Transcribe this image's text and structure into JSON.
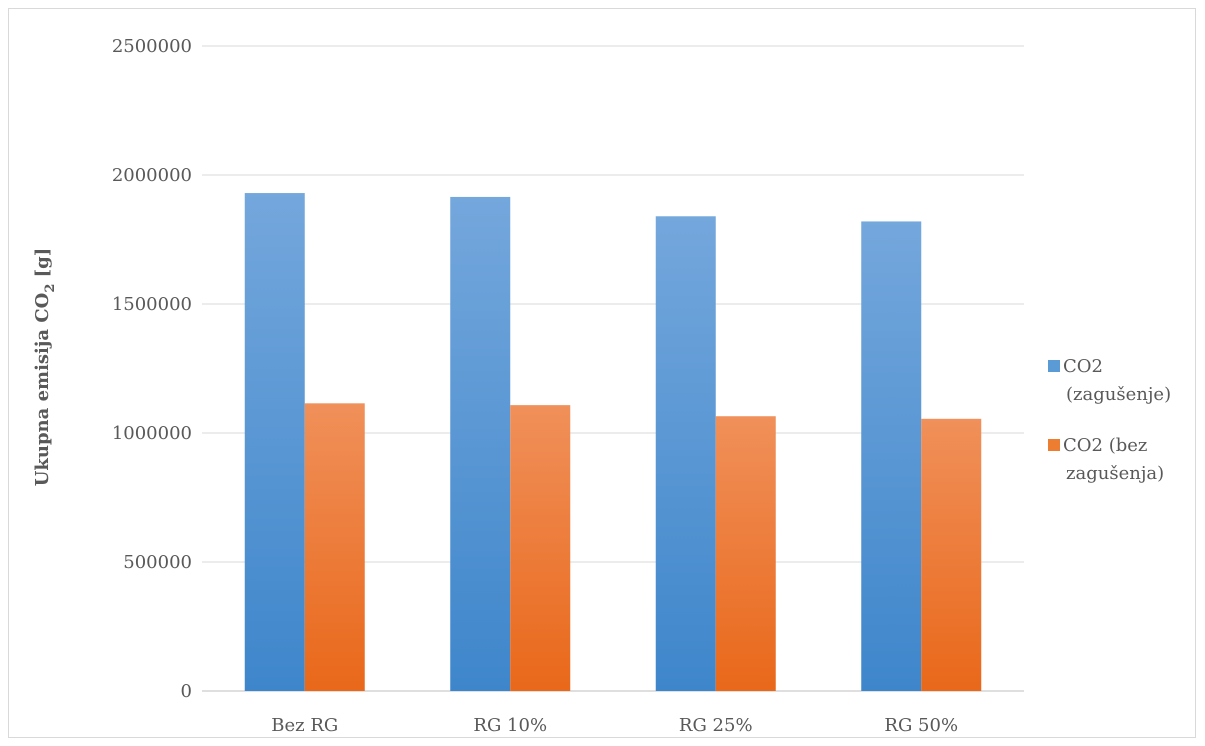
{
  "chart_data": {
    "type": "bar",
    "categories": [
      "Bez RG",
      "RG 10%",
      "RG 25%",
      "RG 50%"
    ],
    "series": [
      {
        "name": "CO2 (zagušenje)",
        "values": [
          1930000,
          1915000,
          1840000,
          1820000
        ],
        "color": "#5b9bd5"
      },
      {
        "name": "CO2 (bez zagušenja)",
        "values": [
          1115000,
          1108000,
          1065000,
          1055000
        ],
        "color": "#ed7d31"
      }
    ],
    "ylabel_main": "Ukupna emisija CO",
    "ylabel_sub": "2",
    "ylabel_tail": " [g]",
    "ylim": [
      0,
      2500000
    ],
    "yticks": [
      0,
      500000,
      1000000,
      1500000,
      2000000,
      2500000
    ],
    "ytick_labels": [
      "0",
      "500000",
      "1000000",
      "1500000",
      "2000000",
      "2500000"
    ],
    "grid": true,
    "legend_position": "right",
    "legend_lines": [
      [
        "CO2",
        "(zagušenje)"
      ],
      [
        "CO2 (bez",
        "zagušenja)"
      ]
    ]
  }
}
